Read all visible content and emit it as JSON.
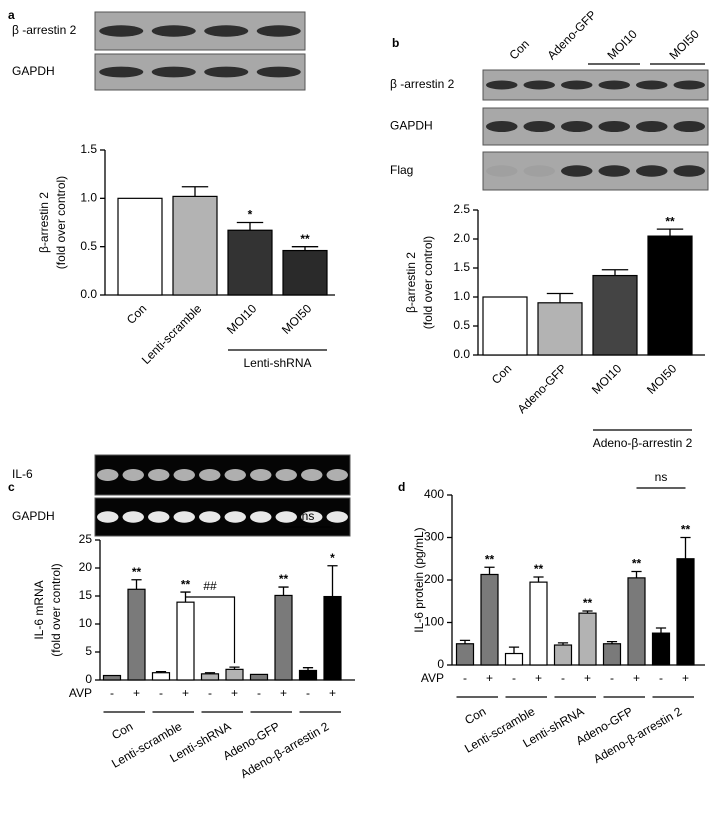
{
  "chart_data": [
    {
      "type": "bar",
      "panel": "a",
      "blots": [
        "β -arrestin 2",
        "GAPDH"
      ],
      "y_label": [
        "β-arrestin 2",
        "(fold over control)"
      ],
      "categories": [
        "Con",
        "Lenti-scramble",
        "MOI10",
        "MOI50"
      ],
      "values": [
        1.0,
        1.02,
        0.67,
        0.46
      ],
      "errors": [
        null,
        0.1,
        0.08,
        0.04
      ],
      "colors": [
        "#ffffff",
        "#b3b3b3",
        "#333333",
        "#2a2a2a"
      ],
      "significance": [
        null,
        null,
        "*",
        "**"
      ],
      "group_label": "Lenti-shRNA",
      "ylim": [
        0,
        1.5
      ],
      "yticks": [
        {
          "value": 0,
          "label": "0.0"
        },
        {
          "value": 0.5,
          "label": "0.5"
        },
        {
          "value": 1,
          "label": "1.0"
        },
        {
          "value": 1.5,
          "label": "1.5"
        }
      ]
    },
    {
      "type": "bar",
      "panel": "b",
      "blots": [
        "β -arrestin 2",
        "GAPDH",
        "Flag"
      ],
      "lanes": [
        "Con",
        "Adeno-GFP",
        "MOI10",
        "MOI50"
      ],
      "y_label": [
        "β-arrestin 2",
        "(fold over control)"
      ],
      "categories": [
        "Con",
        "Adeno-GFP",
        "MOI10",
        "MOI50"
      ],
      "values": [
        1.0,
        0.9,
        1.37,
        2.05
      ],
      "errors": [
        null,
        0.16,
        0.1,
        0.12
      ],
      "colors": [
        "#ffffff",
        "#b3b3b3",
        "#444444",
        "#000000"
      ],
      "significance": [
        null,
        null,
        null,
        "**"
      ],
      "group_label": "Adeno-β-arrestin 2",
      "ylim": [
        0,
        2.5
      ],
      "yticks": [
        {
          "value": 0,
          "label": "0.0"
        },
        {
          "value": 0.5,
          "label": "0.5"
        },
        {
          "value": 1,
          "label": "1.0"
        },
        {
          "value": 1.5,
          "label": "1.5"
        },
        {
          "value": 2,
          "label": "2.0"
        },
        {
          "value": 2.5,
          "label": "2.5"
        }
      ]
    },
    {
      "type": "bar",
      "panel": "c",
      "blots": [
        "IL-6",
        "GAPDH"
      ],
      "y_label": [
        "IL-6 mRNA",
        "(fold over control)"
      ],
      "x_label": "AVP",
      "categories": [
        "-",
        "+",
        "-",
        "+",
        "-",
        "+",
        "-",
        "+",
        "-",
        "+"
      ],
      "groups": [
        "Con",
        "Lenti-scramble",
        "Lenti-shRNA",
        "Adeno-GFP",
        "Adeno-β-arrestin 2"
      ],
      "values": [
        0.8,
        16.2,
        1.3,
        13.9,
        1.1,
        1.9,
        1.0,
        15.1,
        1.7,
        14.9
      ],
      "errors": [
        null,
        1.7,
        0.2,
        1.8,
        0.2,
        0.4,
        null,
        1.5,
        0.5,
        5.5
      ],
      "colors": [
        "#7a7a7a",
        "#7a7a7a",
        "#ffffff",
        "#ffffff",
        "#b3b3b3",
        "#b3b3b3",
        "#7a7a7a",
        "#7a7a7a",
        "#000000",
        "#000000"
      ],
      "significance": [
        null,
        "**",
        null,
        "**",
        null,
        null,
        null,
        "**",
        null,
        "*"
      ],
      "comparisons": [
        "##",
        "ns"
      ],
      "ylim": [
        0,
        25
      ],
      "yticks": [
        0,
        5,
        10,
        15,
        20,
        25
      ]
    },
    {
      "type": "bar",
      "panel": "d",
      "y_label": [
        "IL-6 protein (pg/mL)"
      ],
      "x_label": "AVP",
      "categories": [
        "-",
        "+",
        "-",
        "+",
        "-",
        "+",
        "-",
        "+",
        "-",
        "+"
      ],
      "groups": [
        "Con",
        "Lenti-scramble",
        "Lenti-shRNA",
        "Adeno-GFP",
        "Adeno-β-arrestin 2"
      ],
      "values": [
        50,
        213,
        27,
        195,
        47,
        122,
        50,
        205,
        75,
        250
      ],
      "errors": [
        8,
        17,
        15,
        12,
        5,
        5,
        5,
        15,
        12,
        50
      ],
      "colors": [
        "#7a7a7a",
        "#7a7a7a",
        "#ffffff",
        "#ffffff",
        "#b3b3b3",
        "#b3b3b3",
        "#7a7a7a",
        "#7a7a7a",
        "#000000",
        "#000000"
      ],
      "significance": [
        null,
        "**",
        null,
        "**",
        null,
        "**",
        null,
        "**",
        null,
        "**"
      ],
      "comparisons": [
        "ns"
      ],
      "ylim": [
        0,
        400
      ],
      "yticks": [
        0,
        100,
        200,
        300,
        400
      ]
    }
  ]
}
